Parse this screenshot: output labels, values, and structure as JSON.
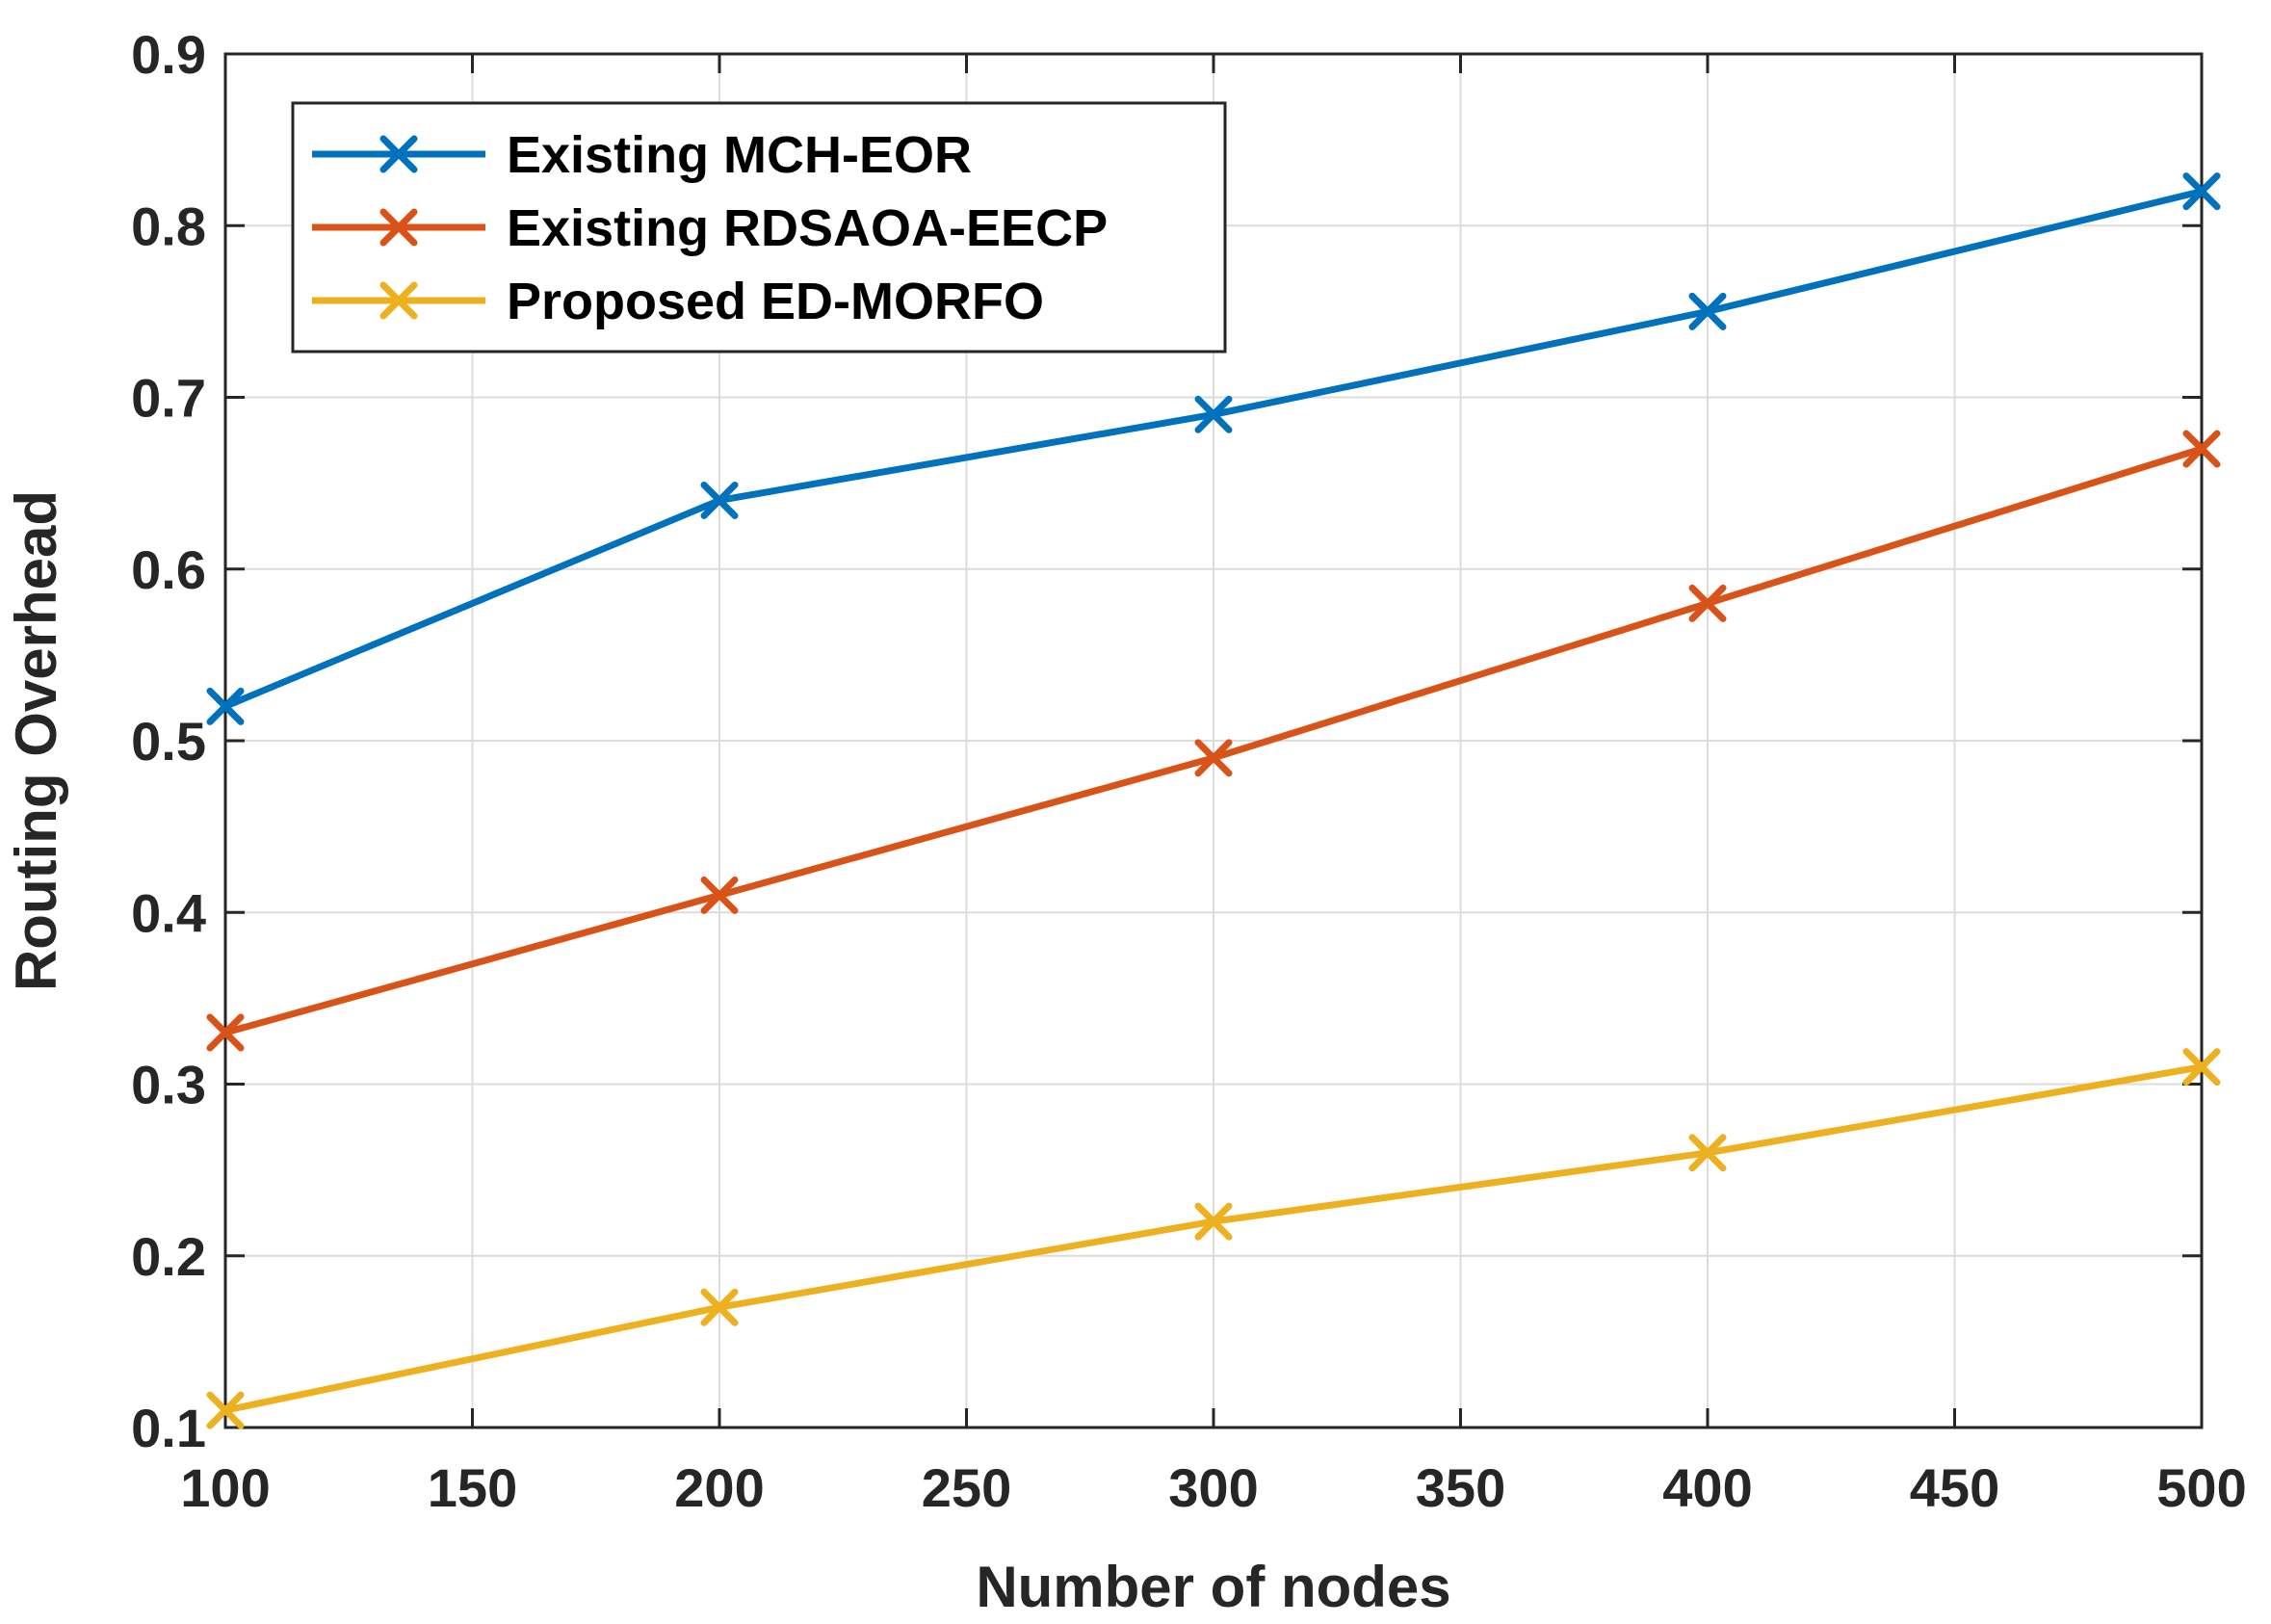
{
  "chart_data": {
    "type": "line",
    "title": "",
    "xlabel": "Number of nodes",
    "ylabel": "Routing Overhead",
    "xlim": [
      100,
      500
    ],
    "ylim": [
      0.1,
      0.9
    ],
    "xticks": [
      100,
      150,
      200,
      250,
      300,
      350,
      400,
      450,
      500
    ],
    "yticks": [
      0.1,
      0.2,
      0.3,
      0.4,
      0.5,
      0.6,
      0.7,
      0.8,
      0.9
    ],
    "xtick_labels": [
      "100",
      "150",
      "200",
      "250",
      "300",
      "350",
      "400",
      "450",
      "500"
    ],
    "ytick_labels": [
      "0.1",
      "0.2",
      "0.3",
      "0.4",
      "0.5",
      "0.6",
      "0.7",
      "0.8",
      "0.9"
    ],
    "grid": true,
    "legend_position": "top-left",
    "x": [
      100,
      200,
      300,
      400,
      500
    ],
    "series": [
      {
        "name": "Existing MCH-EOR",
        "color": "#0072BD",
        "marker": "x",
        "values": [
          0.52,
          0.64,
          0.69,
          0.75,
          0.82
        ]
      },
      {
        "name": "Existing RDSAOA-EECP",
        "color": "#D95319",
        "marker": "x",
        "values": [
          0.33,
          0.41,
          0.49,
          0.58,
          0.67
        ]
      },
      {
        "name": "Proposed ED-MORFO",
        "color": "#EDB120",
        "marker": "x",
        "values": [
          0.11,
          0.17,
          0.22,
          0.26,
          0.31
        ]
      }
    ]
  }
}
